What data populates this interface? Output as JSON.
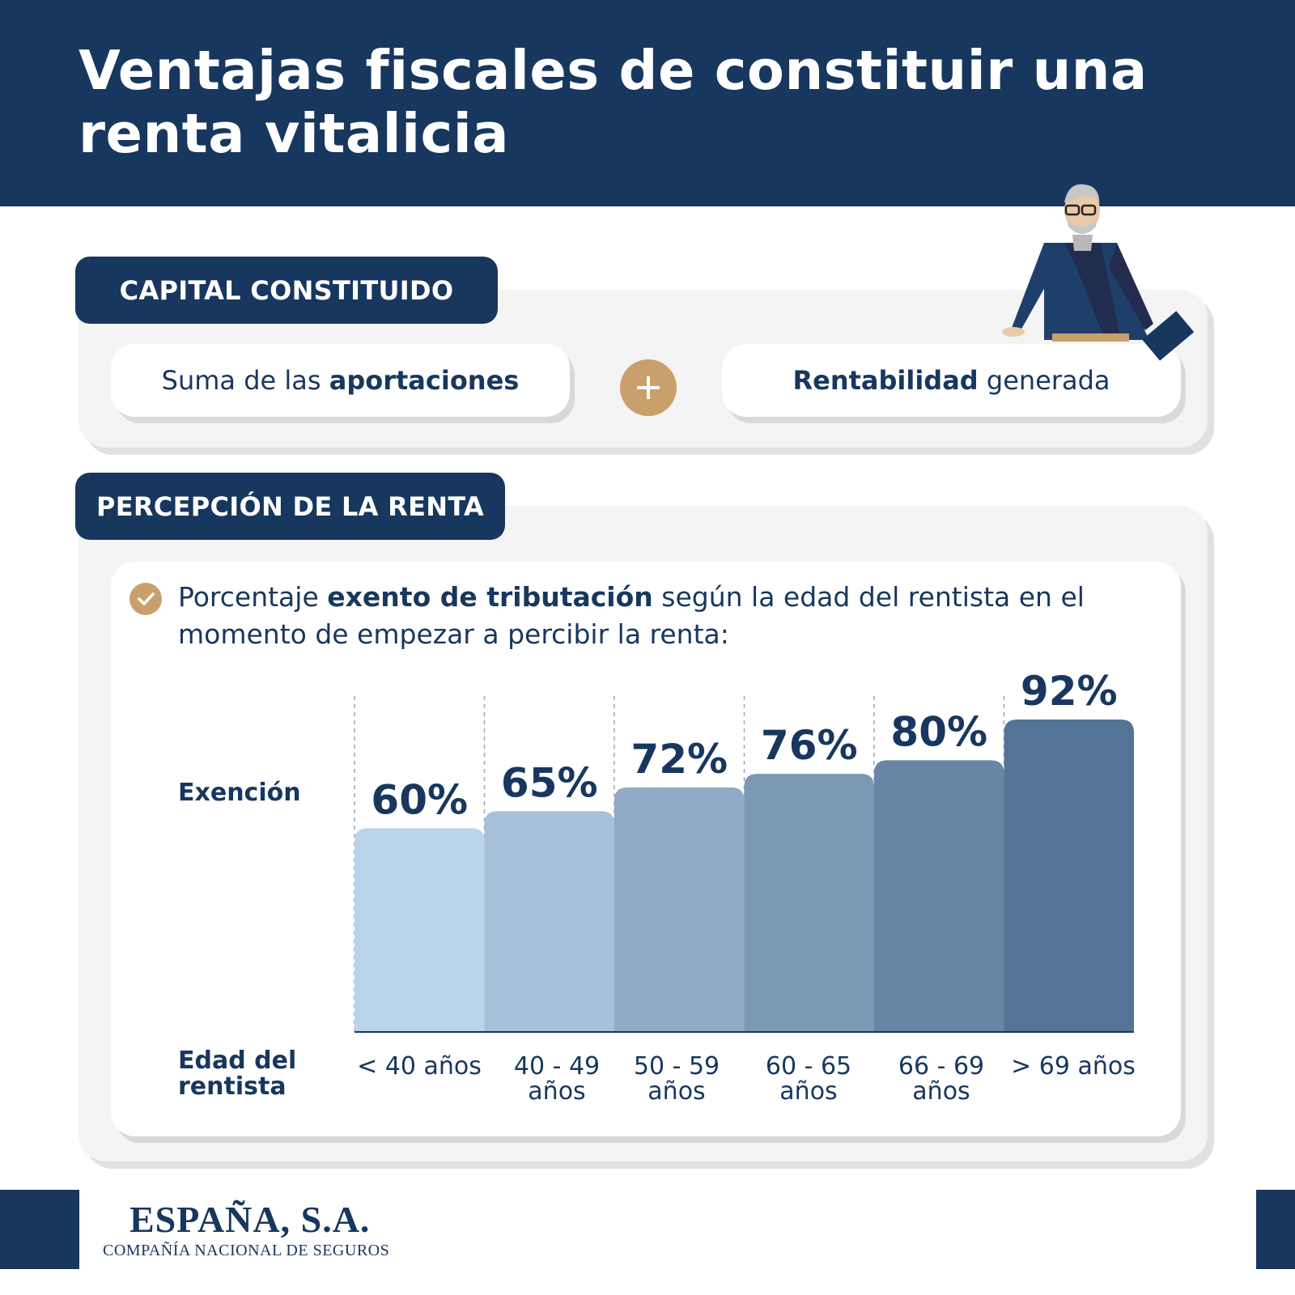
{
  "title": "Ventajas fiscales de constituir una renta vitalicia",
  "section1": {
    "label": "CAPITAL CONSTITUIDO",
    "box1": {
      "pre": "Suma de las ",
      "bold": "aportaciones"
    },
    "box2": {
      "bold": "Rentabilidad",
      "post": " generada"
    }
  },
  "section2": {
    "label": "PERCEPCIÓN DE LA RENTA",
    "desc": {
      "pre": "Porcentaje ",
      "bold": "exento de tributación",
      "post": " según la edad del rentista en el momento de empezar a percibir la renta:"
    }
  },
  "chart_data": {
    "type": "bar",
    "ylabel": "Exención",
    "xlabel": "Edad del rentista",
    "categories": [
      "< 40 años",
      "40 - 49 años",
      "50 - 59 años",
      "60 - 65 años",
      "66 - 69 años",
      "> 69 años"
    ],
    "values": [
      60,
      65,
      72,
      76,
      80,
      92
    ],
    "value_labels": [
      "60%",
      "65%",
      "72%",
      "76%",
      "80%",
      "92%"
    ],
    "ylim": [
      0,
      92
    ],
    "colors": [
      "#bad4ea",
      "#a6c0da",
      "#90abc7",
      "#7b98b5",
      "#6885a6",
      "#547496"
    ],
    "grid": false
  },
  "footer": {
    "brand": "ESPAÑA, S.A.",
    "subtitle": "COMPAÑÍA NACIONAL DE SEGUROS"
  },
  "colors": {
    "navy": "#17375e",
    "gold": "#c9a06b",
    "card": "#f4f4f4"
  }
}
